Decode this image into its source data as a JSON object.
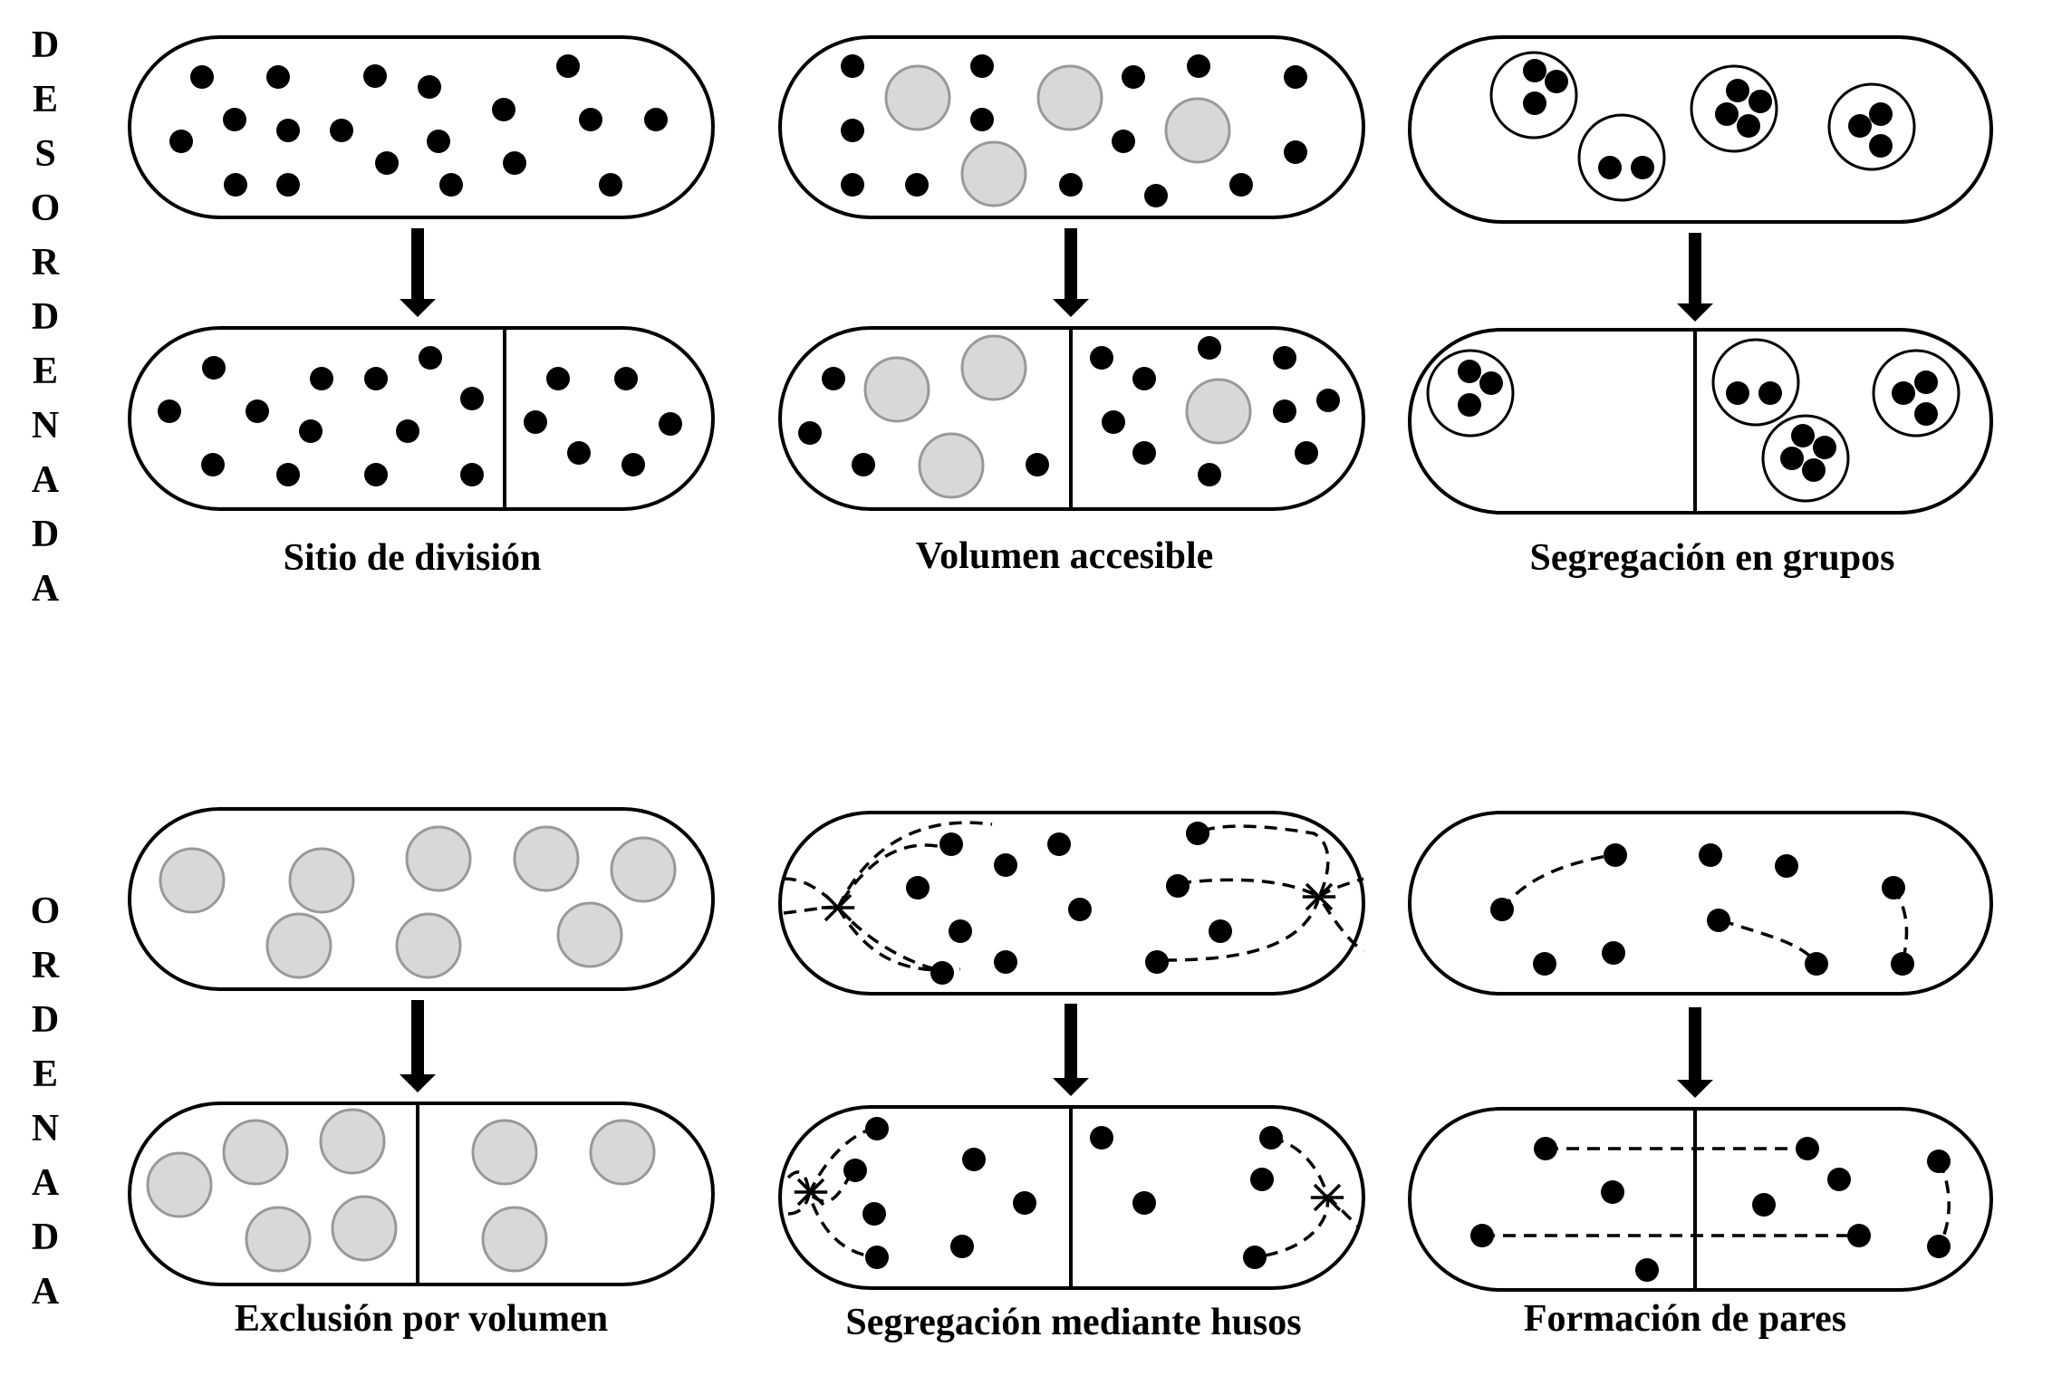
{
  "row_labels": {
    "disordered": "DESORDENADA",
    "ordered": "ORDENADA"
  },
  "panels": [
    {
      "id": "division-site",
      "caption": "Sitio de división",
      "row": "disordered"
    },
    {
      "id": "accessible-volume",
      "caption": "Volumen accesible",
      "row": "disordered"
    },
    {
      "id": "group-segregation",
      "caption": "Segregación en grupos",
      "row": "disordered"
    },
    {
      "id": "volume-exclusion",
      "caption": "Exclusión por volumen",
      "row": "ordered"
    },
    {
      "id": "spindle-segregation",
      "caption": "Segregación mediante husos",
      "row": "ordered"
    },
    {
      "id": "pair-formation",
      "caption": "Formación de pares",
      "row": "ordered"
    }
  ],
  "colors": {
    "outline": "#000000",
    "particle": "#000000",
    "large-particle-fill": "#d8d8d8",
    "large-particle-stroke": "#999999",
    "background": "#ffffff"
  }
}
